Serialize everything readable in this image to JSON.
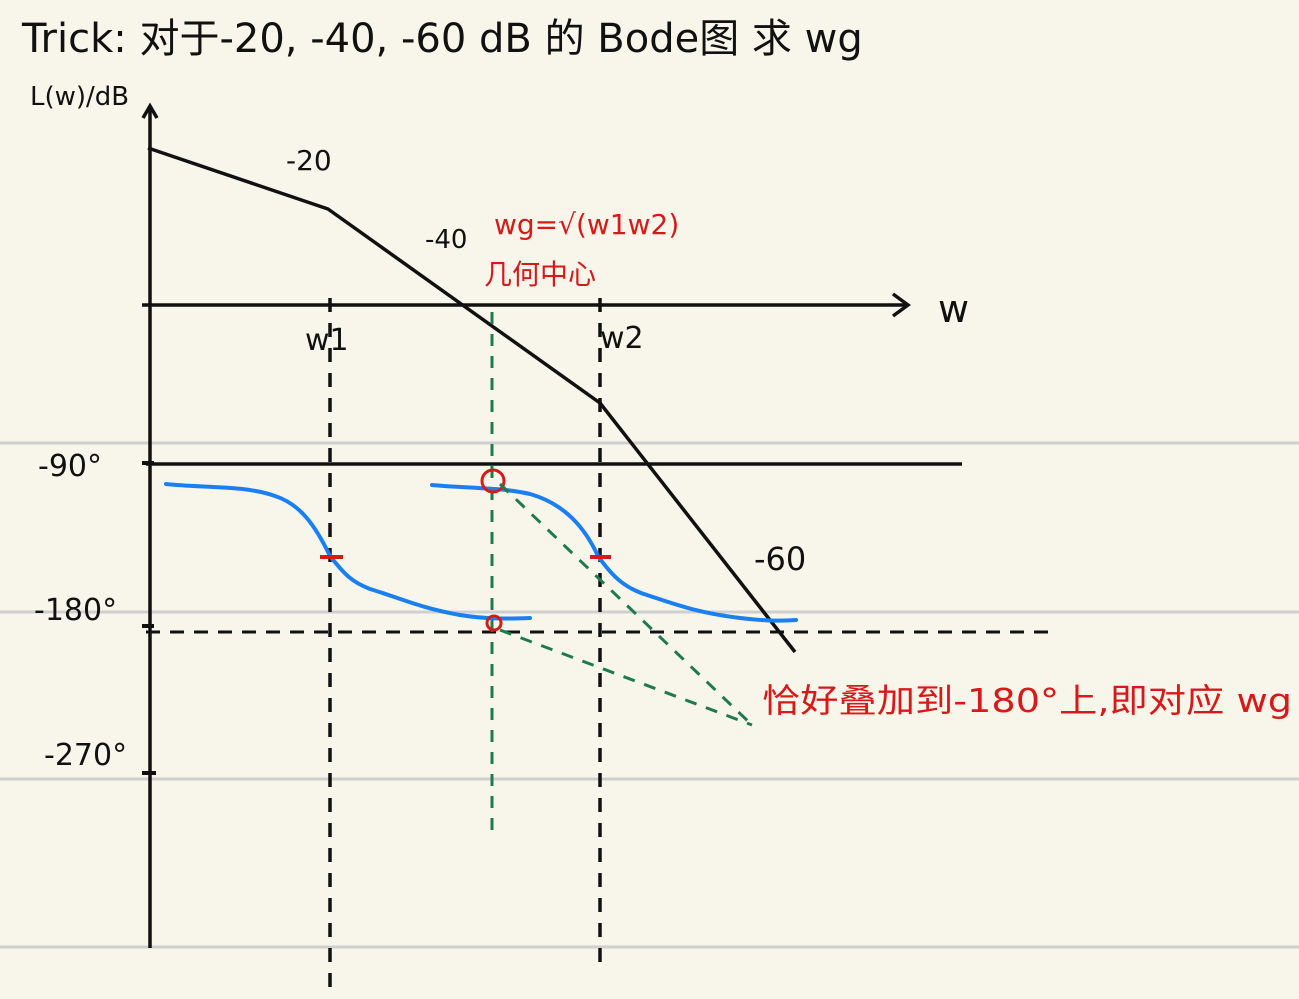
{
  "title": "Trick:  对于-20, -40, -60 dB 的 Bode图 求 wg",
  "axes": {
    "y_label": "L(w)/dB",
    "x_label": "w"
  },
  "slopes": {
    "first": "-20",
    "second": "-40",
    "third": "-60"
  },
  "freq_ticks": {
    "w1": "w1",
    "w2": "w2"
  },
  "phase_ticks": [
    "-90°",
    "-180°",
    "-270°"
  ],
  "annotations": {
    "wg_formula": "wg=√(w1w2)",
    "wg_note": "几何中心",
    "bottom_note": "恰好叠加到-180°上,即对应 wg"
  },
  "colors": {
    "ink": "#111111",
    "phase_curve": "#1a7ff0",
    "annotation": "#d61a1a",
    "guide": "#1f7a4d",
    "ruled_line": "#cfcfcf",
    "paper": "#f8f6ea"
  }
}
